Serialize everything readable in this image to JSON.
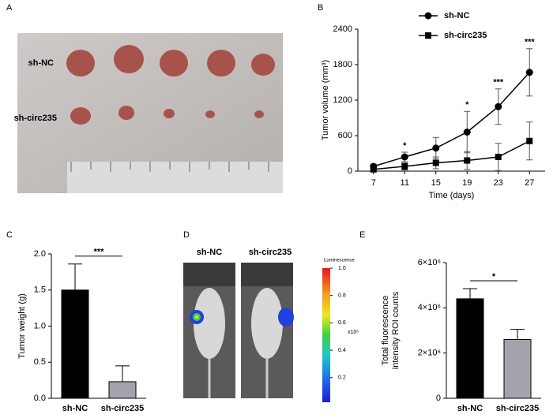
{
  "panel_labels": [
    "A",
    "B",
    "C",
    "D",
    "E"
  ],
  "photo_a": {
    "row_labels": [
      "sh-NC",
      "sh-circ235"
    ]
  },
  "image_d": {
    "labels": [
      "sh-NC",
      "sh-circ235"
    ],
    "colorbar_title": "Luminescence",
    "colorbar_unit": "x10⁶",
    "colorbar_lim": [
      0.02,
      1.0
    ],
    "colorbar_ticks": [
      {
        "value": 1.0,
        "label": "1.0"
      },
      0.8,
      0.6,
      0.4,
      0.2
    ]
  },
  "chart_data": [
    {
      "type": "line",
      "x_label": "Time (days)",
      "y_label": "Tumor volume (mm³)",
      "x": [
        7,
        11,
        15,
        19,
        23,
        27
      ],
      "xlim": [
        5,
        29
      ],
      "xticks": [
        7,
        11,
        15,
        19,
        23,
        27
      ],
      "ylim": [
        0,
        2400
      ],
      "yticks": [
        0,
        600,
        1200,
        1800,
        2400
      ],
      "legend": "top",
      "series": [
        {
          "name": "sh-NC",
          "color": "#000000",
          "marker": "circle",
          "values": [
            80,
            240,
            390,
            660,
            1090,
            1670
          ],
          "errors": [
            40,
            80,
            180,
            350,
            300,
            400
          ]
        },
        {
          "name": "sh-circ235",
          "color": "#000000",
          "marker": "square",
          "values": [
            30,
            80,
            140,
            180,
            240,
            510
          ],
          "errors": [
            20,
            60,
            100,
            150,
            230,
            320
          ]
        }
      ],
      "annotations": [
        {
          "x": 11,
          "label": "*"
        },
        {
          "x": 19,
          "label": "*"
        },
        {
          "x": 23,
          "label": "***"
        },
        {
          "x": 27,
          "label": "***"
        }
      ]
    },
    {
      "type": "bar",
      "y_label": "Tumor weight (g)",
      "categories": [
        "sh-NC",
        "sh-circ235"
      ],
      "values": [
        1.5,
        0.23
      ],
      "errors": [
        0.36,
        0.22
      ],
      "colors": [
        "#000000",
        "#a3a3ab"
      ],
      "ylim": [
        0,
        2.0
      ],
      "yticks": [
        {
          "value": 0,
          "label": "0.0"
        },
        0.5,
        {
          "value": 1,
          "label": "1.0"
        },
        1.5,
        {
          "value": 2,
          "label": "2.0"
        }
      ],
      "annotation": "***"
    },
    {
      "type": "bar",
      "y_label": [
        "Total fluorescence",
        "intensity ROI counts"
      ],
      "categories": [
        "sh-NC",
        "sh-circ235"
      ],
      "values": [
        4400000,
        2600000
      ],
      "errors": [
        450000,
        450000
      ],
      "colors": [
        "#000000",
        "#a3a3ab"
      ],
      "ylim": [
        0,
        6000000
      ],
      "yticks": [
        0,
        {
          "value": 2000000,
          "label": "2×10⁶"
        },
        {
          "value": 4000000,
          "label": "4×10⁶"
        },
        {
          "value": 6000000,
          "label": "6×10⁶"
        }
      ],
      "annotation": "*"
    }
  ]
}
